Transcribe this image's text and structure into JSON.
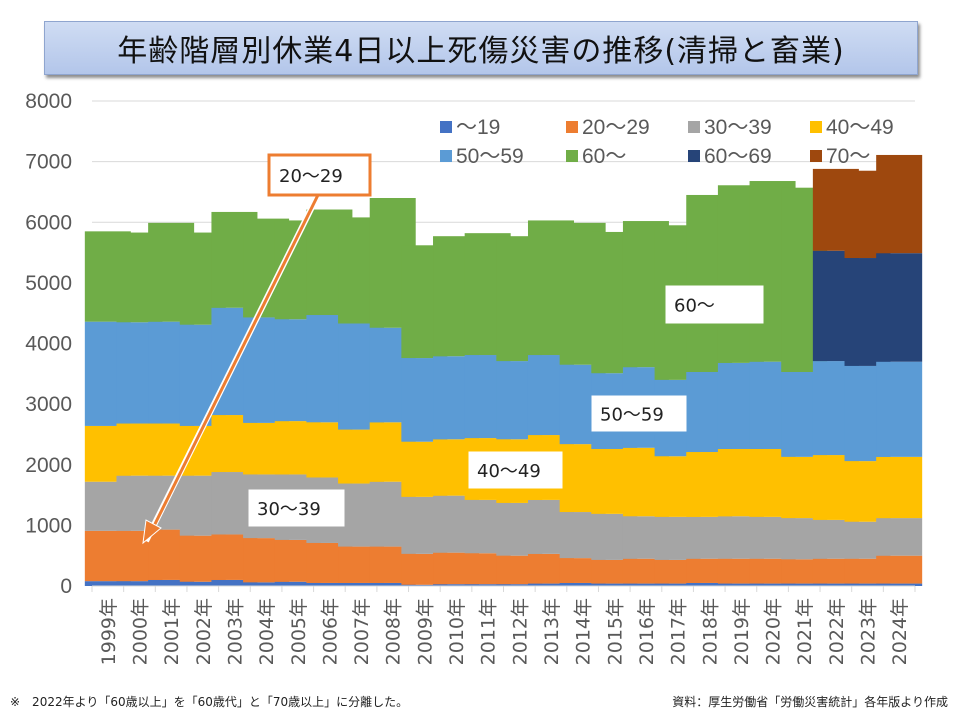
{
  "title": "年齢階層別休業4日以上死傷災害の推移(清掃と畜業)",
  "footnote_left": "※　2022年より「60歳以上」を「60歳代」と「70歳以上」に分離した。",
  "footnote_right": "資料：厚生労働省「労働災害統計」各年版より作成",
  "chart_data": {
    "type": "bar",
    "stacked": true,
    "title": "年齢階層別休業4日以上死傷災害の推移(清掃と畜業)",
    "xlabel": "",
    "ylabel": "",
    "ylim": [
      0,
      8000
    ],
    "yticks": [
      0,
      1000,
      2000,
      3000,
      4000,
      5000,
      6000,
      7000,
      8000
    ],
    "grid": true,
    "legend_position": "top-right",
    "categories": [
      "1999年",
      "2000年",
      "2001年",
      "2002年",
      "2003年",
      "2004年",
      "2005年",
      "2006年",
      "2007年",
      "2008年",
      "2009年",
      "2010年",
      "2011年",
      "2012年",
      "2013年",
      "2014年",
      "2015年",
      "2016年",
      "2017年",
      "2018年",
      "2019年",
      "2020年",
      "2021年",
      "2022年",
      "2023年",
      "2024年"
    ],
    "series": [
      {
        "name": "～19",
        "color": "#4472C4",
        "values": [
          80,
          80,
          100,
          70,
          100,
          60,
          70,
          50,
          50,
          50,
          20,
          30,
          30,
          30,
          40,
          50,
          40,
          40,
          40,
          50,
          40,
          40,
          40,
          40,
          40,
          40
        ]
      },
      {
        "name": "20～29",
        "color": "#ED7D31",
        "values": [
          830,
          830,
          830,
          760,
          750,
          730,
          690,
          660,
          600,
          600,
          510,
          520,
          510,
          470,
          490,
          410,
          390,
          410,
          390,
          400,
          410,
          410,
          400,
          410,
          410,
          460
        ]
      },
      {
        "name": "30～39",
        "color": "#A5A5A5",
        "values": [
          810,
          910,
          890,
          990,
          1030,
          1050,
          1080,
          1080,
          1040,
          1070,
          940,
          940,
          880,
          870,
          890,
          760,
          760,
          700,
          710,
          690,
          700,
          690,
          680,
          640,
          610,
          620
        ]
      },
      {
        "name": "40～49",
        "color": "#FFC000",
        "values": [
          920,
          860,
          860,
          820,
          940,
          850,
          880,
          910,
          890,
          980,
          910,
          930,
          1020,
          1050,
          1070,
          1120,
          1070,
          1130,
          1000,
          1070,
          1110,
          1120,
          1010,
          1070,
          1000,
          1010
        ]
      },
      {
        "name": "50～59",
        "color": "#5B9BD5",
        "values": [
          1720,
          1670,
          1680,
          1670,
          1770,
          1740,
          1680,
          1770,
          1750,
          1560,
          1380,
          1370,
          1370,
          1290,
          1320,
          1310,
          1250,
          1330,
          1260,
          1320,
          1420,
          1440,
          1400,
          1550,
          1570,
          1570
        ]
      },
      {
        "name": "60～",
        "color": "#70AD47",
        "values": [
          1490,
          1480,
          1630,
          1520,
          1580,
          1630,
          1630,
          1740,
          1750,
          2140,
          1860,
          1980,
          2010,
          2060,
          2220,
          2340,
          2330,
          2410,
          2550,
          2920,
          2930,
          2980,
          3040,
          null,
          null,
          null
        ]
      },
      {
        "name": "60～69",
        "color": "#264478",
        "values": [
          null,
          null,
          null,
          null,
          null,
          null,
          null,
          null,
          null,
          null,
          null,
          null,
          null,
          null,
          null,
          null,
          null,
          null,
          null,
          null,
          null,
          null,
          null,
          1820,
          1780,
          1790
        ]
      },
      {
        "name": "70～",
        "color": "#9E480E",
        "values": [
          null,
          null,
          null,
          null,
          null,
          null,
          null,
          null,
          null,
          null,
          null,
          null,
          null,
          null,
          null,
          null,
          null,
          null,
          null,
          null,
          null,
          null,
          null,
          1350,
          1440,
          1620
        ]
      }
    ],
    "annotations": [
      {
        "text": "20～29",
        "border": "#ED7D31",
        "has_arrow": true,
        "arrow_to_category": "2000年"
      },
      {
        "text": "30～39",
        "border": "#A5A5A5",
        "has_arrow": false
      },
      {
        "text": "40～49",
        "border": "#FFC000",
        "has_arrow": false
      },
      {
        "text": "50～59",
        "border": "#5B9BD5",
        "has_arrow": false
      },
      {
        "text": "60～",
        "border": "#70AD47",
        "has_arrow": false
      }
    ]
  }
}
